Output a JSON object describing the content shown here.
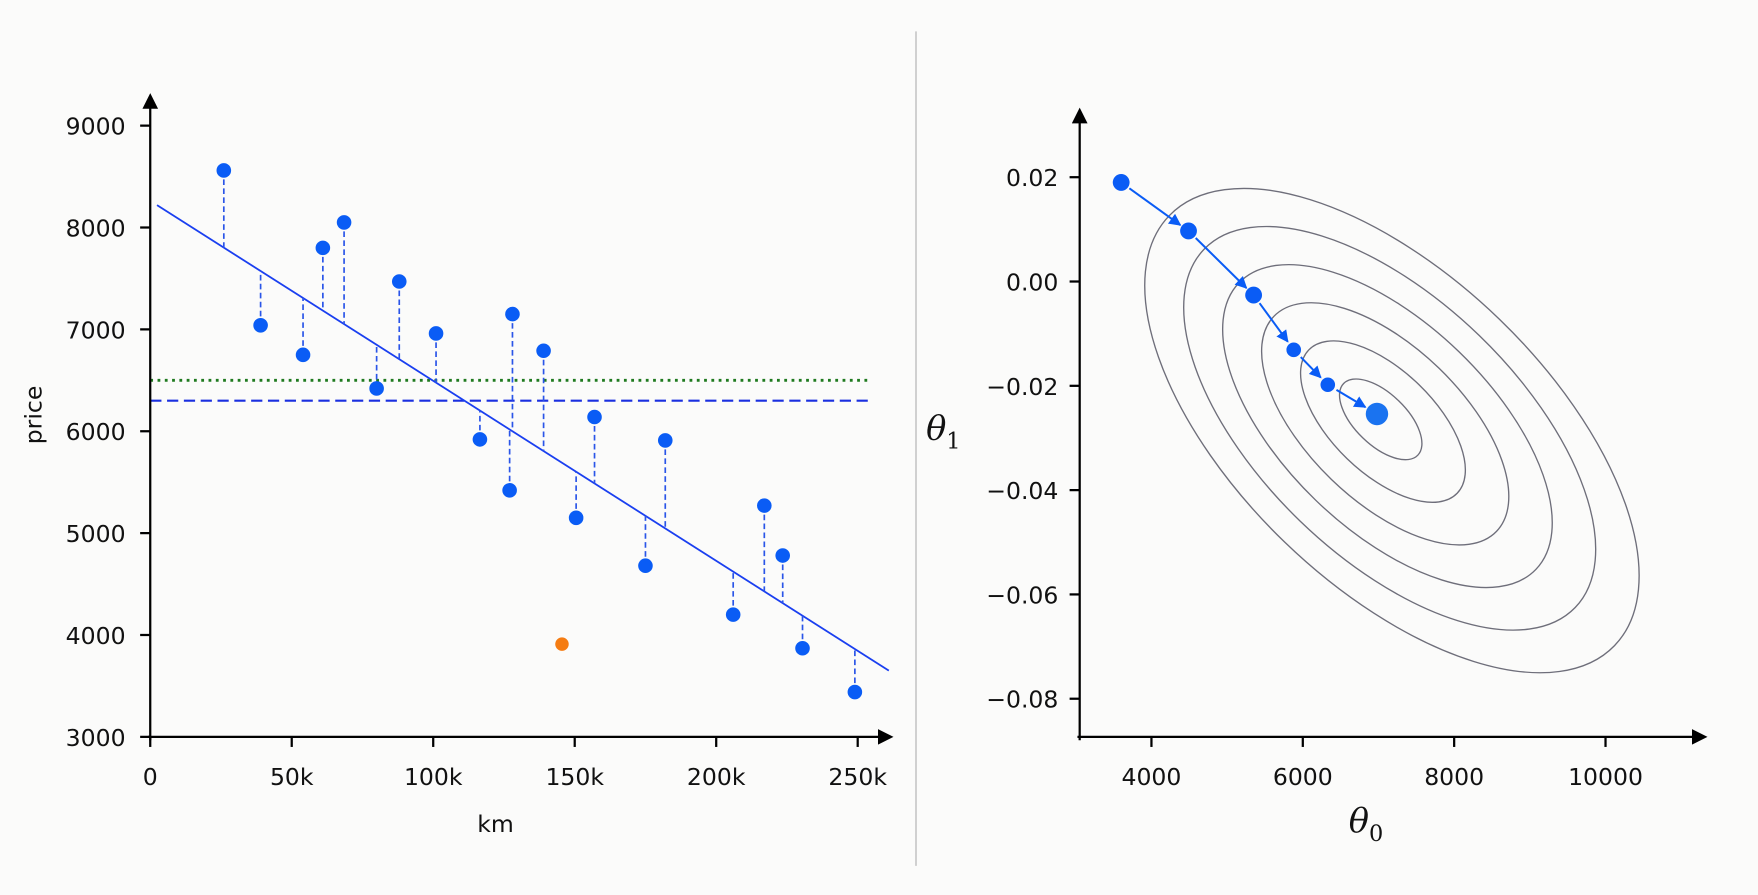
{
  "chart_data": [
    {
      "type": "scatter",
      "xlabel": "km",
      "ylabel": "price",
      "xlim": [
        0,
        265
      ],
      "ylim": [
        3000,
        9300
      ],
      "x_unit": "thousand km",
      "x_ticks": [
        0,
        50,
        100,
        150,
        200,
        250
      ],
      "x_tick_labels": [
        "0",
        "50k",
        "100k",
        "150k",
        "200k",
        "250k"
      ],
      "y_ticks": [
        3000,
        4000,
        5000,
        6000,
        7000,
        8000,
        9000
      ],
      "y_tick_labels": [
        "3000",
        "4000",
        "5000",
        "6000",
        "7000",
        "8000",
        "9000"
      ],
      "grid": false,
      "colors": {
        "points": "#0a5cf5",
        "fit_line": "#1a3ff0",
        "outlier": "#f57c12",
        "mean_dotted": "#1f7a1f",
        "mean_dashed": "#1a2fe0",
        "residuals": "#2a55e8"
      },
      "points": [
        {
          "x": 26,
          "y": 8560
        },
        {
          "x": 39,
          "y": 7040
        },
        {
          "x": 54,
          "y": 6750
        },
        {
          "x": 61,
          "y": 7800
        },
        {
          "x": 68.5,
          "y": 8050
        },
        {
          "x": 80,
          "y": 6420
        },
        {
          "x": 88,
          "y": 7470
        },
        {
          "x": 101,
          "y": 6960
        },
        {
          "x": 116.5,
          "y": 5920
        },
        {
          "x": 127,
          "y": 5420
        },
        {
          "x": 128,
          "y": 7150
        },
        {
          "x": 139,
          "y": 6790
        },
        {
          "x": 150.5,
          "y": 5150
        },
        {
          "x": 157,
          "y": 6140
        },
        {
          "x": 175,
          "y": 4680
        },
        {
          "x": 182,
          "y": 5910
        },
        {
          "x": 206,
          "y": 4200
        },
        {
          "x": 217,
          "y": 5270
        },
        {
          "x": 223.5,
          "y": 4780
        },
        {
          "x": 230.5,
          "y": 3870
        },
        {
          "x": 249,
          "y": 3440
        }
      ],
      "outlier": {
        "x": 145.5,
        "y": 3910
      },
      "fit_line": {
        "intercept": 8262,
        "slope_per_thousand_km": -17.67,
        "x_range": [
          2.4,
          261
        ]
      },
      "horizontal_lines": [
        {
          "style": "dotted",
          "y": 6500
        },
        {
          "style": "dashed",
          "y": 6300
        }
      ]
    },
    {
      "type": "contour",
      "xlabel": "θ0",
      "ylabel": "θ1",
      "xlim": [
        3000,
        11300
      ],
      "ylim": [
        -0.087,
        0.03
      ],
      "x_ticks": [
        4000,
        6000,
        8000,
        10000
      ],
      "x_tick_labels": [
        "4000",
        "6000",
        "8000",
        "10000"
      ],
      "y_ticks": [
        0.02,
        0.0,
        -0.02,
        -0.04,
        -0.06,
        -0.08
      ],
      "y_tick_labels": [
        "0.02",
        "0.00",
        "−0.02",
        "−0.04",
        "−0.06",
        "−0.08"
      ],
      "grid": false,
      "colors": {
        "contours": "#6e6e7a",
        "path": "#0a5cf5",
        "minimum": "#1a73f0"
      },
      "contour_center": {
        "theta0": 7000,
        "theta1": -0.026
      },
      "contour_levels": [
        1,
        2,
        3,
        4,
        5,
        6
      ],
      "descent_path": [
        {
          "theta0": 3600,
          "theta1": 0.019
        },
        {
          "theta0": 4490,
          "theta1": 0.0097
        },
        {
          "theta0": 5350,
          "theta1": -0.0026
        },
        {
          "theta0": 5880,
          "theta1": -0.0131
        },
        {
          "theta0": 6330,
          "theta1": -0.0198
        },
        {
          "theta0": 6980,
          "theta1": -0.0254
        }
      ]
    }
  ]
}
